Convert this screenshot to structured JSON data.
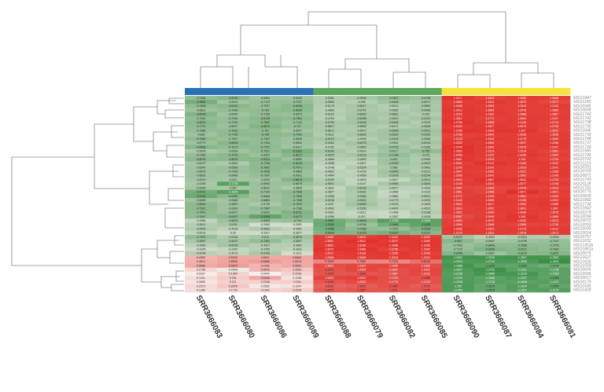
{
  "chart_data": {
    "type": "heatmap",
    "columns": [
      "SRR3666083",
      "SRR3666080",
      "SRR3666086",
      "SRR3666089",
      "SRR3666088",
      "SRR3666079",
      "SRR3666082",
      "SRR3666085",
      "SRR3666090",
      "SRR3666087",
      "SRR3666084",
      "SRR3666081"
    ],
    "column_colors": [
      "#2a72b5",
      "#2a72b5",
      "#2a72b5",
      "#2a72b5",
      "#5fa85f",
      "#5fa85f",
      "#5fa85f",
      "#5fa85f",
      "#f5e23a",
      "#f5e23a",
      "#f5e23a",
      "#f5e23a"
    ],
    "rows": [
      "NGO1947",
      "NGO1189",
      "NGO0345",
      "NGO0008",
      "NGO1740",
      "NGO1742",
      "NGO1738",
      "NGO1735",
      "NGO1046",
      "NGO1739",
      "NGO1748",
      "NGO1737",
      "NGO1744",
      "NGO1585",
      "NGO1745",
      "NGO0702",
      "NGO1215",
      "NGO0701",
      "NGO0700",
      "NGO0971",
      "NGO1743",
      "NGO0118",
      "NGO1741",
      "NGO0775",
      "NGO0609",
      "NGO1892",
      "NGO1734",
      "NGO1842",
      "NGO0379",
      "NGO2094",
      "NGO0072",
      "NGO2093",
      "NGO2095",
      "NGO2014",
      "NGO0757",
      "NGO1652",
      "NGO1453a",
      "NGO1851a",
      "NGO0076",
      "NGO1627",
      "NGO1626",
      "NGO1559",
      "NGO0605",
      "NGO2006",
      "NGO0017",
      "NGO0179",
      "NGO1436",
      "NGO1428"
    ],
    "colors": {
      "low": "#2f8a3c",
      "mid": "#f7efec",
      "high": "#e0221c"
    },
    "clim": [
      -1.5,
      1.5
    ],
    "values": [
      [
        -0.7484,
        -0.8139,
        -0.6594,
        -0.6435,
        -0.5361,
        -0.5926,
        -0.7407,
        -0.6738,
        1.3717,
        1.2642,
        1.3085,
        1.2846
      ],
      [
        -0.9665,
        -0.6423,
        -0.7123,
        -0.7237,
        -0.5563,
        -0.496,
        -0.6465,
        -0.6077,
        1.2853,
        1.3241,
        1.2879,
        1.2377
      ],
      [
        -0.7659,
        -0.8129,
        -0.7257,
        -0.8236,
        -0.5176,
        -0.6017,
        -0.5013,
        -0.5863,
        1.3158,
        1.2953,
        1.2943,
        1.3134
      ],
      [
        -0.6821,
        -0.7443,
        -0.764,
        -0.8054,
        -0.4853,
        -0.5741,
        -0.5382,
        -0.6046,
        1.3413,
        1.3064,
        1.2978,
        1.2889
      ],
      [
        -0.8749,
        -0.6595,
        -0.7239,
        -0.6973,
        -0.5192,
        -0.6032,
        -0.5891,
        -0.532,
        1.3223,
        1.3162,
        1.2868,
        1.2857
      ],
      [
        -0.7441,
        -0.7294,
        -0.8138,
        -0.7861,
        -0.4763,
        -0.6258,
        -0.5519,
        -0.6131,
        1.3311,
        1.2771,
        1.3081,
        1.3197
      ],
      [
        -0.8213,
        -0.7315,
        -0.7862,
        -0.7123,
        -0.5759,
        -0.6246,
        -0.6184,
        -0.5205,
        1.3756,
        1.2858,
        1.3149,
        1.2714
      ],
      [
        -0.7711,
        -0.6917,
        -0.8579,
        -0.747,
        -0.5617,
        -0.5593,
        -0.5071,
        -0.5638,
        1.3132,
        1.3327,
        1.3073,
        1.2743
      ],
      [
        -0.7485,
        -0.7625,
        -0.761,
        -0.6507,
        -0.5673,
        -0.5472,
        -0.6406,
        -0.6411,
        1.3768,
        1.3423,
        1.337,
        1.2641
      ],
      [
        -0.666,
        -0.7799,
        -0.795,
        -0.7634,
        -0.5211,
        -0.6092,
        -0.6329,
        -0.6183,
        1.2758,
        1.2904,
        1.3036,
        1.3058
      ],
      [
        -0.7864,
        -0.7067,
        -0.7397,
        -0.6826,
        -0.6115,
        -0.4948,
        -0.6145,
        -0.5566,
        1.3128,
        1.3318,
        1.3176,
        1.3083
      ],
      [
        -0.6773,
        -0.8326,
        -0.7426,
        -0.6654,
        -0.5484,
        -0.6275,
        -0.5534,
        -0.6216,
        1.3229,
        1.3053,
        1.3097,
        1.3256
      ],
      [
        -0.8468,
        -0.7673,
        -0.7767,
        -0.6417,
        -0.4782,
        -0.5563,
        -0.6753,
        -0.5358,
        1.3749,
        1.3082,
        1.2876,
        1.3197
      ],
      [
        -0.5835,
        -0.6596,
        -0.7621,
        -0.9332,
        -0.6242,
        -0.4914,
        -0.6217,
        -0.755,
        1.3653,
        1.3113,
        1.3114,
        1.2681
      ],
      [
        -0.7362,
        -0.7976,
        -0.6652,
        -0.8217,
        -0.5624,
        -0.6153,
        -0.7248,
        -0.578,
        1.3436,
        1.3152,
        1.3289,
        1.2964
      ],
      [
        -0.8034,
        -0.8015,
        -0.8331,
        -0.6853,
        -0.4869,
        -0.4893,
        -0.643,
        -0.5363,
        1.3551,
        1.2876,
        1.316,
        1.2734
      ],
      [
        -0.6137,
        -0.5564,
        -0.7796,
        -0.8229,
        -0.4396,
        -0.3871,
        -0.6455,
        -0.5629,
        1.2941,
        1.3713,
        1.3189,
        1.3232
      ],
      [
        -0.6542,
        -0.6926,
        -0.7892,
        -0.7671,
        -0.3748,
        -0.5324,
        -0.566,
        -0.5462,
        1.3278,
        1.3143,
        1.2923,
        1.3241
      ],
      [
        -0.6675,
        -0.7109,
        -0.7646,
        -0.6864,
        -0.4622,
        -0.4159,
        -0.6349,
        -0.5213,
        1.3047,
        1.2952,
        1.2921,
        1.3268
      ],
      [
        -0.6692,
        -0.6468,
        -0.7347,
        -0.6931,
        -0.4464,
        -0.4659,
        -0.5978,
        -0.6294,
        1.3285,
        1.3141,
        1.2961,
        1.3169
      ],
      [
        -0.6229,
        -0.627,
        -0.6252,
        -0.8676,
        -0.5099,
        -0.3876,
        -0.3627,
        -0.5514,
        1.2924,
        1.3657,
        1.3641,
        1.2753
      ],
      [
        -0.5789,
        -1.1736,
        -0.6992,
        -0.6978,
        -0.5621,
        -0.4147,
        -0.5983,
        -0.5826,
        1.3198,
        1.3221,
        1.3277,
        1.3148
      ],
      [
        -0.6353,
        -0.587,
        -0.6622,
        -0.5693,
        -0.3831,
        -0.6126,
        -0.4677,
        -0.4333,
        1.2567,
        1.2269,
        1.2476,
        1.2633
      ],
      [
        -0.9721,
        -1.1815,
        -0.7134,
        -0.7934,
        -0.4677,
        -0.5391,
        -0.3696,
        -0.4129,
        1.2851,
        1.2495,
        1.3871,
        1.3021
      ],
      [
        -1.0251,
        -0.8162,
        -0.6668,
        -0.7548,
        -0.4396,
        -0.5364,
        -0.3884,
        -0.5221,
        1.2771,
        1.3105,
        1.2661,
        1.2943
      ],
      [
        -0.6485,
        -0.6389,
        -0.6865,
        -0.7458,
        -0.5236,
        -0.5633,
        -0.4773,
        -0.4625,
        1.3148,
        1.3069,
        1.3138,
        1.3254
      ],
      [
        -0.8051,
        -0.6687,
        -0.5736,
        -0.7623,
        -0.4257,
        -0.6453,
        -0.4578,
        -0.4405,
        1.3042,
        1.3217,
        1.3062,
        1.3465
      ],
      [
        -0.7921,
        -0.6629,
        -0.7387,
        -0.7158,
        -0.4592,
        -0.5265,
        -0.4874,
        -0.4523,
        1.2814,
        1.3052,
        1.3051,
        1.309
      ],
      [
        -0.7641,
        -0.6917,
        -0.6932,
        -0.8711,
        -0.4321,
        -0.3512,
        -0.3366,
        -0.5138,
        1.3052,
        1.2939,
        1.3069,
        1.2975
      ],
      [
        -0.7647,
        -0.8157,
        -1.1119,
        -0.8373,
        -0.4396,
        -0.413,
        -0.3387,
        -0.4245,
        1.2087,
        1.2946,
        1.345,
        1.2889
      ],
      [
        -0.3984,
        -0.6693,
        -0.6656,
        -0.714,
        -0.9887,
        -0.8549,
        -1.1935,
        -1.1646,
        1.2826,
        1.3079,
        1.3282,
        1.3013
      ],
      [
        -0.5111,
        -0.576,
        -0.2665,
        -0.2651,
        -1.0282,
        -0.6786,
        -0.9485,
        -1.1125,
        1.2896,
        1.2848,
        1.2509,
        1.2739
      ],
      [
        -0.5445,
        -0.4294,
        -0.5532,
        -0.4357,
        -0.9488,
        -0.7698,
        -0.7247,
        -0.9164,
        1.3288,
        1.2937,
        1.3179,
        1.3212
      ],
      [
        -0.4131,
        -0.32,
        -0.2927,
        -0.3677,
        -0.8844,
        -0.8716,
        -0.9327,
        -0.8157,
        1.3139,
        1.3151,
        1.3078,
        1.3071
      ],
      [
        -0.7327,
        -0.5346,
        -0.614,
        -0.6676,
        1.2869,
        1.2873,
        1.3443,
        1.3028,
        -0.6222,
        -0.4632,
        -0.5316,
        -0.5054
      ],
      [
        -0.6067,
        -0.6022,
        -0.7462,
        -0.5647,
        1.3061,
        1.3921,
        1.3271,
        1.3495,
        -0.833,
        -0.6547,
        -0.6759,
        -0.7167
      ],
      [
        -0.4663,
        -0.6193,
        -0.4927,
        -0.4861,
        1.3061,
        1.3246,
        1.3468,
        1.3396,
        -0.7003,
        -0.8044,
        -0.7858,
        -0.7578
      ],
      [
        -0.3245,
        -0.3787,
        -0.4759,
        -0.4321,
        1.3574,
        1.3486,
        1.2755,
        1.3392,
        -0.7114,
        -0.8836,
        -0.8371,
        -0.7683
      ],
      [
        -0.4794,
        -0.4073,
        -0.5789,
        -0.2611,
        1.3017,
        1.3318,
        1.3358,
        1.2948,
        -0.8456,
        -0.6667,
        -0.8224,
        -0.8267
      ],
      [
        0.4352,
        0.5334,
        0.5119,
        0.5462,
        1.2968,
        1.3008,
        1.3318,
        1.3224,
        -1.3451,
        -1.3318,
        -1.3527,
        -1.3367
      ],
      [
        0.4513,
        0.5506,
        0.5965,
        0.5213,
        0.7609,
        0.7565,
        0.7475,
        0.9145,
        -1.2613,
        -1.2715,
        -1.2653,
        -1.4211
      ],
      [
        0.5069,
        0.5975,
        0.4255,
        0.5051,
        1.1841,
        1.2337,
        1.2496,
        1.1993,
        -1.3385,
        -1.1379,
        -1.1116,
        -1.0144
      ],
      [
        0.1796,
        -0.0909,
        0.4075,
        0.3062,
        1.1472,
        1.2449,
        1.1697,
        1.2422,
        -1.2627,
        -1.3722,
        -1.1922,
        -1.1755
      ],
      [
        0.0327,
        0.1964,
        0.0044,
        0.2093,
        1.1229,
        1.1324,
        1.1667,
        1.2233,
        -1.2136,
        -1.3265,
        -1.3216,
        -1.1564
      ],
      [
        0.1411,
        0.261,
        0.5235,
        0.1058,
        1.2424,
        1.2942,
        1.1753,
        1.1468,
        -1.2319,
        -1.1546,
        -1.2327,
        -1.1369
      ],
      [
        0.0805,
        0.221,
        0.2168,
        0.234,
        1.1278,
        1.2032,
        1.1776,
        1.1724,
        -1.2339,
        -1.1718,
        -1.1648,
        -1.1972
      ],
      [
        0.1573,
        0.2876,
        0.0555,
        0.1047,
        1.0226,
        1.0653,
        1.1487,
        1.0729,
        -1.255,
        -1.1014,
        -1.2334,
        -1.0994
      ],
      [
        0.1289,
        0.1733,
        0.1942,
        0.2516,
        1.0873,
        1.1367,
        1.1041,
        1.1166,
        -1.2463,
        -1.0978,
        -1.1821,
        -1.2175
      ]
    ]
  }
}
